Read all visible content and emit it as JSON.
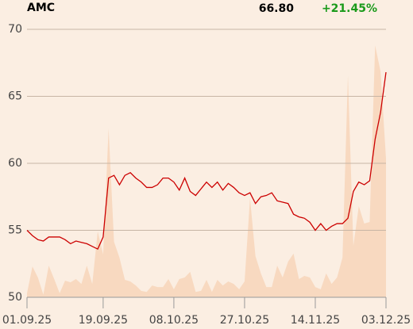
{
  "chart_data": {
    "type": "line",
    "title": "AMC",
    "last_price": "66.80",
    "change": "+21.45%",
    "categories": [
      "01.09.25",
      null,
      null,
      null,
      null,
      null,
      null,
      null,
      null,
      null,
      null,
      null,
      null,
      null,
      "19.09.25",
      null,
      null,
      null,
      null,
      null,
      null,
      null,
      null,
      null,
      null,
      null,
      null,
      "08.10.25",
      null,
      null,
      null,
      null,
      null,
      null,
      null,
      null,
      null,
      null,
      null,
      null,
      "27.10.25",
      null,
      null,
      null,
      null,
      null,
      null,
      null,
      null,
      null,
      null,
      null,
      null,
      "14.11.25",
      null,
      null,
      null,
      null,
      null,
      null,
      null,
      null,
      null,
      null,
      null,
      null,
      "03.12.25"
    ],
    "series": [
      {
        "color": "#cc0000",
        "values": [
          55.0,
          54.6,
          54.3,
          54.2,
          54.5,
          54.5,
          54.5,
          54.3,
          54.0,
          54.2,
          54.1,
          54.0,
          53.8,
          53.6,
          54.5,
          58.9,
          59.1,
          58.4,
          59.1,
          59.3,
          58.9,
          58.6,
          58.2,
          58.2,
          58.4,
          58.9,
          58.9,
          58.6,
          58.0,
          58.9,
          57.9,
          57.6,
          58.1,
          58.6,
          58.2,
          58.6,
          58.0,
          58.5,
          58.2,
          57.8,
          57.6,
          57.8,
          57.0,
          57.5,
          57.6,
          57.8,
          57.2,
          57.1,
          57.0,
          56.2,
          56.0,
          55.9,
          55.6,
          55.0,
          55.5,
          55.0,
          55.3,
          55.5,
          55.5,
          55.9,
          57.9,
          58.6,
          58.4,
          58.7,
          61.8,
          63.8,
          66.8
        ]
      },
      {
        "color": "#f8d9c0",
        "axis": "y2",
        "values": [
          1.5,
          11.5,
          7.4,
          1,
          11.8,
          6.8,
          1.5,
          6.2,
          5.6,
          6.8,
          5,
          11.8,
          5,
          24.6,
          16,
          63,
          20.7,
          14.8,
          6.5,
          5.9,
          4.4,
          2.4,
          2,
          4.4,
          3.8,
          3.8,
          6.8,
          3,
          6.8,
          7.4,
          9.5,
          2,
          2.4,
          6.5,
          2,
          6.5,
          4.4,
          5.9,
          5,
          3,
          5.9,
          37,
          15.4,
          8.9,
          3.8,
          3.8,
          11.8,
          7.4,
          13.3,
          16.3,
          6.8,
          8,
          7.4,
          3.8,
          3,
          8.9,
          5,
          7.4,
          14.8,
          82.8,
          19.2,
          34,
          27.5,
          28.1,
          94,
          84.3,
          51.8
        ]
      }
    ],
    "ylim": [
      50,
      70
    ],
    "yticks": [
      50,
      55,
      60,
      65,
      70
    ],
    "y2lim": [
      0,
      100
    ],
    "grid": true
  }
}
